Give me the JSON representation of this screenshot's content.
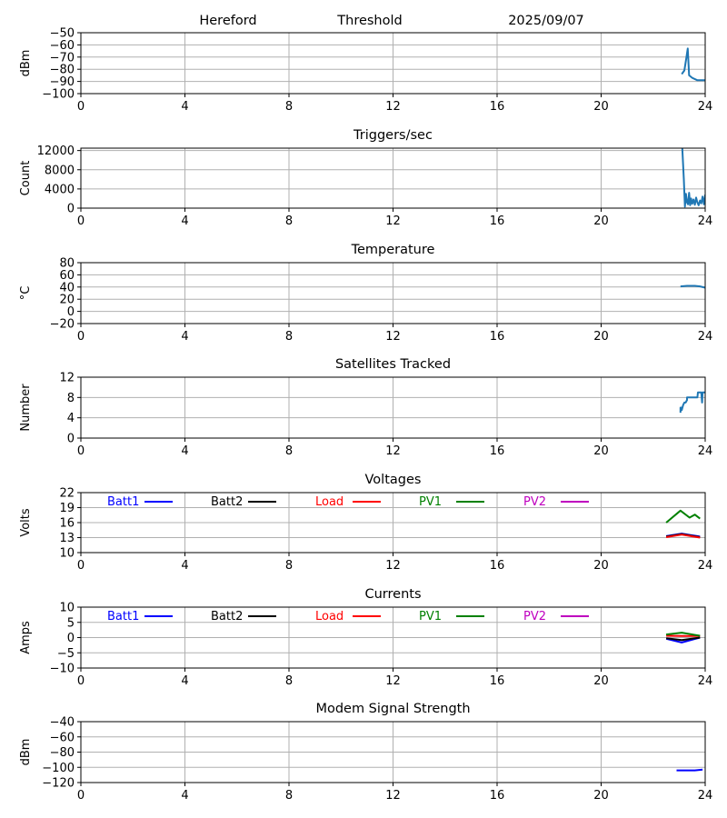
{
  "header": {
    "station": "Hereford",
    "mode": "Threshold",
    "date": "2025/09/07"
  },
  "colors": {
    "default": "#1f77b4",
    "Batt1": "#0000ff",
    "Batt2": "#000000",
    "Load": "#ff0000",
    "PV1": "#008000",
    "PV2": "#bf00bf",
    "modem": "#0000ff"
  },
  "chart_data": [
    {
      "type": "line",
      "title": "",
      "ylabel": "dBm",
      "xlim": [
        0,
        24
      ],
      "xticks": [
        "0",
        "4",
        "8",
        "12",
        "16",
        "20",
        "24"
      ],
      "ylim": [
        -100,
        -50
      ],
      "yticks": [
        "−50",
        "−60",
        "−70",
        "−80",
        "−90",
        "−100"
      ],
      "grid": true,
      "series": [
        {
          "color_key": "default",
          "x": [
            23.1,
            23.2,
            23.28,
            23.33,
            23.38,
            23.5,
            23.7,
            23.9,
            24.0
          ],
          "y": [
            -84,
            -81,
            -70,
            -63,
            -85,
            -87,
            -89,
            -89,
            -89
          ]
        }
      ]
    },
    {
      "type": "line",
      "title": "Triggers/sec",
      "ylabel": "Count",
      "xlim": [
        0,
        24
      ],
      "xticks": [
        "0",
        "4",
        "8",
        "12",
        "16",
        "20",
        "24"
      ],
      "ylim": [
        0,
        12500
      ],
      "yticks": [
        "12000",
        "8000",
        "4000",
        "0"
      ],
      "grid": true,
      "series": [
        {
          "color_key": "default",
          "x": [
            23.12,
            23.18,
            23.22,
            23.26,
            23.3,
            23.34,
            23.38,
            23.42,
            23.46,
            23.5,
            23.55,
            23.6,
            23.65,
            23.7,
            23.75,
            23.8,
            23.85,
            23.9,
            23.95,
            24.0
          ],
          "y": [
            12500,
            6000,
            300,
            3000,
            1200,
            800,
            3200,
            600,
            2000,
            900,
            1800,
            700,
            2200,
            1200,
            600,
            1600,
            1000,
            2400,
            800,
            2800
          ]
        }
      ]
    },
    {
      "type": "line",
      "title": "Temperature",
      "ylabel": "°C",
      "xlim": [
        0,
        24
      ],
      "xticks": [
        "0",
        "4",
        "8",
        "12",
        "16",
        "20",
        "24"
      ],
      "ylim": [
        -20,
        80
      ],
      "yticks": [
        "80",
        "60",
        "40",
        "20",
        "0",
        "−20"
      ],
      "grid": true,
      "series": [
        {
          "color_key": "default",
          "x": [
            23.05,
            23.3,
            23.6,
            23.8,
            24.0
          ],
          "y": [
            41,
            42,
            42,
            41,
            39
          ]
        }
      ]
    },
    {
      "type": "line",
      "title": "Satellites Tracked",
      "ylabel": "Number",
      "xlim": [
        0,
        24
      ],
      "xticks": [
        "0",
        "4",
        "8",
        "12",
        "16",
        "20",
        "24"
      ],
      "ylim": [
        0,
        12
      ],
      "yticks": [
        "12",
        "8",
        "4",
        "0"
      ],
      "grid": true,
      "series": [
        {
          "color_key": "default",
          "x": [
            23.05,
            23.05,
            23.1,
            23.1,
            23.15,
            23.2,
            23.25,
            23.3,
            23.3,
            23.5,
            23.7,
            23.72,
            23.85,
            23.88,
            23.9,
            24.0
          ],
          "y": [
            5,
            6,
            6,
            5.5,
            6.5,
            7,
            7,
            7.5,
            8,
            8,
            8,
            9,
            9,
            7,
            9,
            9
          ]
        }
      ]
    },
    {
      "type": "line",
      "title": "Voltages",
      "ylabel": "Volts",
      "xlim": [
        0,
        24
      ],
      "xticks": [
        "0",
        "4",
        "8",
        "12",
        "16",
        "20",
        "24"
      ],
      "ylim": [
        10,
        22
      ],
      "yticks": [
        "22",
        "19",
        "16",
        "13",
        "10"
      ],
      "grid": true,
      "legend": [
        "Batt1",
        "Batt2",
        "Load",
        "PV1",
        "PV2"
      ],
      "series": [
        {
          "name": "Batt1",
          "color_key": "Batt1",
          "x": [
            22.5,
            23.1,
            23.8
          ],
          "y": [
            13.3,
            13.8,
            13.2
          ]
        },
        {
          "name": "Batt2",
          "color_key": "Batt2",
          "x": [
            22.5,
            23.1,
            23.8
          ],
          "y": [
            13.2,
            13.7,
            13.1
          ]
        },
        {
          "name": "Load",
          "color_key": "Load",
          "x": [
            22.5,
            23.1,
            23.8
          ],
          "y": [
            13.1,
            13.6,
            13.0
          ]
        },
        {
          "name": "PV1",
          "color_key": "PV1",
          "x": [
            22.5,
            23.05,
            23.4,
            23.6,
            23.8
          ],
          "y": [
            16.0,
            18.4,
            17.0,
            17.6,
            16.8
          ]
        },
        {
          "name": "PV2",
          "color_key": "PV2",
          "x": [],
          "y": []
        }
      ]
    },
    {
      "type": "line",
      "title": "Currents",
      "ylabel": "Amps",
      "xlim": [
        0,
        24
      ],
      "xticks": [
        "0",
        "4",
        "8",
        "12",
        "16",
        "20",
        "24"
      ],
      "ylim": [
        -10,
        10
      ],
      "yticks": [
        "10",
        "5",
        "0",
        "−5",
        "−10"
      ],
      "grid": true,
      "legend": [
        "Batt1",
        "Batt2",
        "Load",
        "PV1",
        "PV2"
      ],
      "series": [
        {
          "name": "Batt1",
          "color_key": "Batt1",
          "x": [
            22.5,
            23.1,
            23.8
          ],
          "y": [
            -0.4,
            -1.6,
            0.0
          ]
        },
        {
          "name": "Batt2",
          "color_key": "Batt2",
          "x": [
            22.5,
            23.1,
            23.8
          ],
          "y": [
            -0.2,
            -0.8,
            0.0
          ]
        },
        {
          "name": "Load",
          "color_key": "Load",
          "x": [
            22.5,
            23.1,
            23.8
          ],
          "y": [
            0.6,
            0.5,
            0.5
          ]
        },
        {
          "name": "PV1",
          "color_key": "PV1",
          "x": [
            22.5,
            23.1,
            23.8
          ],
          "y": [
            1.0,
            1.6,
            0.6
          ]
        },
        {
          "name": "PV2",
          "color_key": "PV2",
          "x": [],
          "y": []
        }
      ]
    },
    {
      "type": "line",
      "title": "Modem Signal Strength",
      "ylabel": "dBm",
      "xlim": [
        0,
        24
      ],
      "xticks": [
        "0",
        "4",
        "8",
        "12",
        "16",
        "20",
        "24"
      ],
      "ylim": [
        -120,
        -40
      ],
      "yticks": [
        "−40",
        "−60",
        "−80",
        "−100",
        "−120"
      ],
      "grid": true,
      "series": [
        {
          "color_key": "modem",
          "x": [
            22.9,
            23.3,
            23.6,
            23.9
          ],
          "y": [
            -104,
            -104,
            -104,
            -103
          ]
        }
      ]
    }
  ]
}
